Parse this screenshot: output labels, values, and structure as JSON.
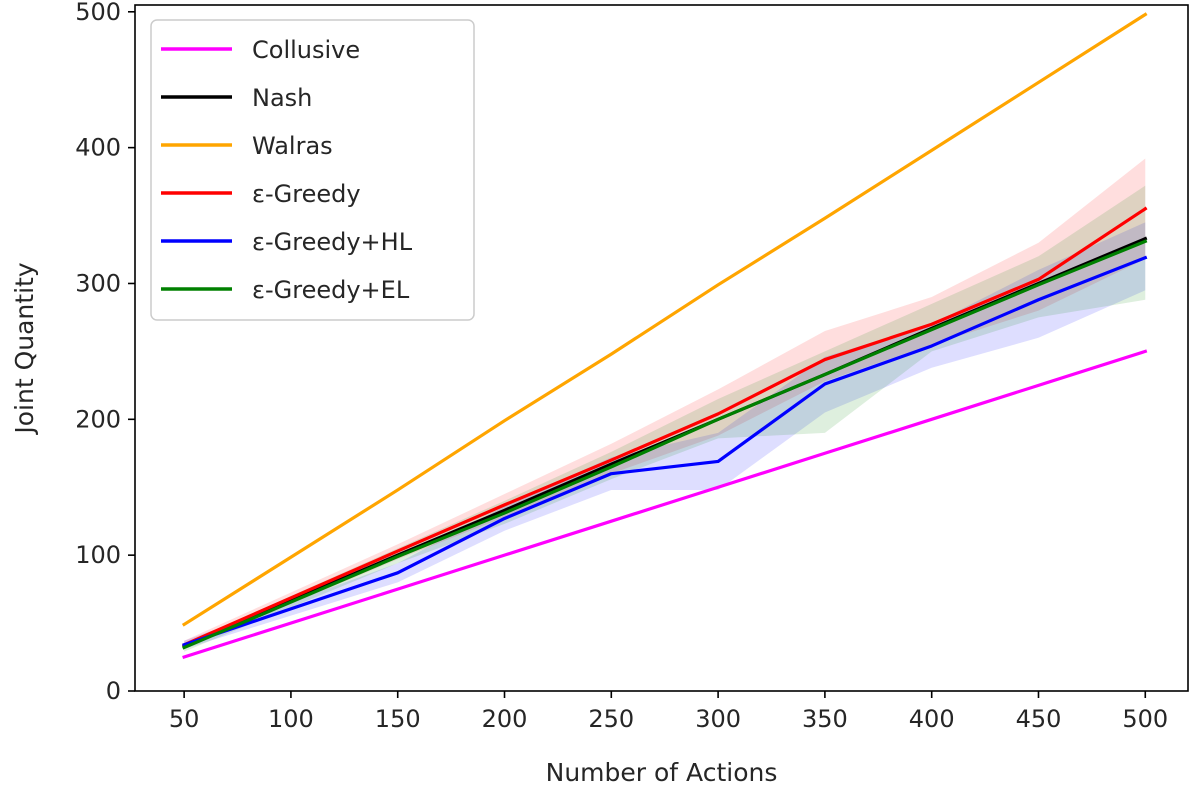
{
  "chart_data": {
    "type": "line",
    "title": "",
    "xlabel": "Number of Actions",
    "ylabel": "Joint Quantity",
    "xlim": [
      27,
      520
    ],
    "ylim": [
      0,
      505
    ],
    "x_ticks": [
      50,
      100,
      150,
      200,
      250,
      300,
      350,
      400,
      450,
      500
    ],
    "y_ticks": [
      0,
      100,
      200,
      300,
      400,
      500
    ],
    "x": [
      50,
      150,
      200,
      250,
      300,
      350,
      400,
      450,
      500
    ],
    "legend_position": "upper-left",
    "series": [
      {
        "name": "Collusive",
        "color": "#ff00ff",
        "values": [
          25,
          75,
          100,
          125,
          150,
          175,
          200,
          225,
          250
        ]
      },
      {
        "name": "Nash",
        "color": "#000000",
        "values": [
          33,
          100,
          133,
          167,
          200,
          233,
          267,
          300,
          333
        ]
      },
      {
        "name": "Walras",
        "color": "#ffa500",
        "values": [
          49,
          148,
          199,
          248,
          299,
          348,
          398,
          448,
          498
        ]
      },
      {
        "name": "ε-Greedy",
        "color": "#ff0000",
        "values": [
          34,
          103,
          137,
          170,
          204,
          244,
          270,
          303,
          355
        ],
        "band_lower": [
          31,
          97,
          128,
          160,
          188,
          228,
          255,
          280,
          318
        ],
        "band_upper": [
          37,
          108,
          145,
          182,
          222,
          265,
          290,
          330,
          392
        ]
      },
      {
        "name": "ε-Greedy+HL",
        "color": "#0000ff",
        "values": [
          34,
          87,
          127,
          160,
          169,
          226,
          254,
          288,
          319
        ],
        "band_lower": [
          31,
          80,
          118,
          148,
          148,
          205,
          238,
          260,
          295
        ],
        "band_upper": [
          37,
          94,
          136,
          172,
          190,
          246,
          270,
          310,
          345
        ]
      },
      {
        "name": "ε-Greedy+EL",
        "color": "#008000",
        "values": [
          32,
          99,
          131,
          165,
          200,
          233,
          266,
          299,
          331
        ],
        "band_lower": [
          29,
          94,
          123,
          156,
          186,
          190,
          250,
          275,
          288
        ],
        "band_upper": [
          35,
          105,
          140,
          176,
          215,
          250,
          285,
          320,
          372
        ]
      }
    ]
  }
}
